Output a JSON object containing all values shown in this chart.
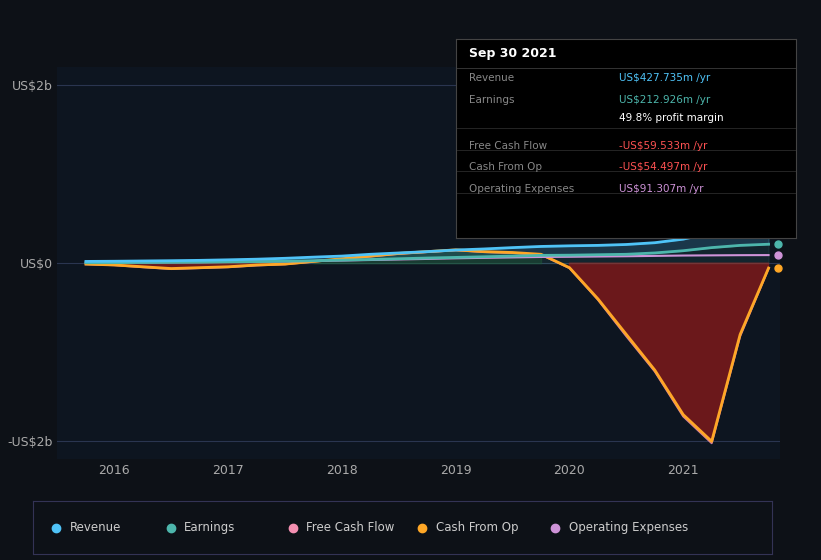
{
  "bg_color": "#0d1117",
  "plot_bg_color": "#0d1520",
  "yticks": [
    "US$2b",
    "US$0",
    "-US$2b"
  ],
  "ytick_values": [
    2000,
    0,
    -2000
  ],
  "xticks": [
    "2016",
    "2017",
    "2018",
    "2019",
    "2020",
    "2021"
  ],
  "xtick_values": [
    2016,
    2017,
    2018,
    2019,
    2020,
    2021
  ],
  "xlim": [
    2015.5,
    2021.85
  ],
  "ylim": [
    -2200,
    2200
  ],
  "legend": [
    {
      "label": "Revenue",
      "color": "#4fc3f7"
    },
    {
      "label": "Earnings",
      "color": "#4db6ac"
    },
    {
      "label": "Free Cash Flow",
      "color": "#f48fb1"
    },
    {
      "label": "Cash From Op",
      "color": "#ffa726"
    },
    {
      "label": "Operating Expenses",
      "color": "#ce93d8"
    }
  ],
  "tooltip_title": "Sep 30 2021",
  "tooltip_rows": [
    {
      "label": "Revenue",
      "value": "US$427.735m /yr",
      "label_color": "#888888",
      "value_color": "#4fc3f7"
    },
    {
      "label": "Earnings",
      "value": "US$212.926m /yr",
      "label_color": "#888888",
      "value_color": "#4db6ac"
    },
    {
      "label": "",
      "value": "49.8% profit margin",
      "label_color": "#888888",
      "value_color": "#ffffff"
    },
    {
      "label": "Free Cash Flow",
      "value": "-US$59.533m /yr",
      "label_color": "#888888",
      "value_color": "#ff5252"
    },
    {
      "label": "Cash From Op",
      "value": "-US$54.497m /yr",
      "label_color": "#888888",
      "value_color": "#ff5252"
    },
    {
      "label": "Operating Expenses",
      "value": "US$91.307m /yr",
      "label_color": "#888888",
      "value_color": "#ce93d8"
    }
  ],
  "revenue_x": [
    2015.75,
    2016.0,
    2016.25,
    2016.5,
    2016.75,
    2017.0,
    2017.25,
    2017.5,
    2017.75,
    2018.0,
    2018.25,
    2018.5,
    2018.75,
    2019.0,
    2019.25,
    2019.5,
    2019.75,
    2020.0,
    2020.25,
    2020.5,
    2020.75,
    2021.0,
    2021.25,
    2021.5,
    2021.75
  ],
  "revenue_y": [
    20,
    22,
    25,
    28,
    32,
    38,
    45,
    55,
    68,
    80,
    100,
    115,
    130,
    148,
    160,
    175,
    188,
    195,
    200,
    210,
    230,
    270,
    340,
    400,
    428
  ],
  "earnings_x": [
    2015.75,
    2016.0,
    2016.25,
    2016.5,
    2016.75,
    2017.0,
    2017.25,
    2017.5,
    2017.75,
    2018.0,
    2018.25,
    2018.5,
    2018.75,
    2019.0,
    2019.25,
    2019.5,
    2019.75,
    2020.0,
    2020.25,
    2020.5,
    2020.75,
    2021.0,
    2021.25,
    2021.5,
    2021.75
  ],
  "earnings_y": [
    5,
    6,
    8,
    10,
    12,
    15,
    18,
    22,
    28,
    35,
    42,
    50,
    58,
    65,
    72,
    80,
    88,
    90,
    95,
    100,
    115,
    140,
    175,
    200,
    213
  ],
  "cashfromop_x": [
    2015.75,
    2016.0,
    2016.25,
    2016.5,
    2016.75,
    2017.0,
    2017.25,
    2017.5,
    2017.75,
    2018.0,
    2018.25,
    2018.5,
    2018.75,
    2019.0,
    2019.25,
    2019.5,
    2019.75,
    2020.0,
    2020.25,
    2020.5,
    2020.75,
    2021.0,
    2021.25,
    2021.5,
    2021.75
  ],
  "cashfromop_y": [
    -10,
    -20,
    -40,
    -60,
    -50,
    -40,
    -20,
    -10,
    20,
    50,
    80,
    110,
    130,
    150,
    130,
    120,
    100,
    -50,
    -400,
    -800,
    -1200,
    -1700,
    -2000,
    -800,
    -54
  ],
  "freecashflow_x": [
    2015.75,
    2016.0,
    2016.25,
    2016.5,
    2016.75,
    2017.0,
    2017.25,
    2017.5,
    2017.75,
    2018.0,
    2018.25,
    2018.5,
    2018.75,
    2019.0,
    2019.25,
    2019.5,
    2019.75,
    2020.0,
    2020.25,
    2020.5,
    2020.75,
    2021.0,
    2021.25,
    2021.5,
    2021.75
  ],
  "freecashflow_y": [
    -12,
    -22,
    -45,
    -65,
    -55,
    -45,
    -25,
    -12,
    18,
    45,
    75,
    105,
    125,
    145,
    125,
    115,
    95,
    -55,
    -410,
    -820,
    -1215,
    -1720,
    -2020,
    -820,
    -60
  ],
  "opex_x": [
    2015.75,
    2016.0,
    2016.25,
    2016.5,
    2016.75,
    2017.0,
    2017.25,
    2017.5,
    2017.75,
    2018.0,
    2018.25,
    2018.5,
    2018.75,
    2019.0,
    2019.25,
    2019.5,
    2019.75,
    2020.0,
    2020.25,
    2020.5,
    2020.75,
    2021.0,
    2021.25,
    2021.5,
    2021.75
  ],
  "opex_y": [
    5,
    6,
    8,
    10,
    11,
    14,
    17,
    20,
    25,
    30,
    36,
    42,
    48,
    55,
    60,
    65,
    70,
    72,
    75,
    78,
    82,
    86,
    88,
    90,
    91
  ]
}
